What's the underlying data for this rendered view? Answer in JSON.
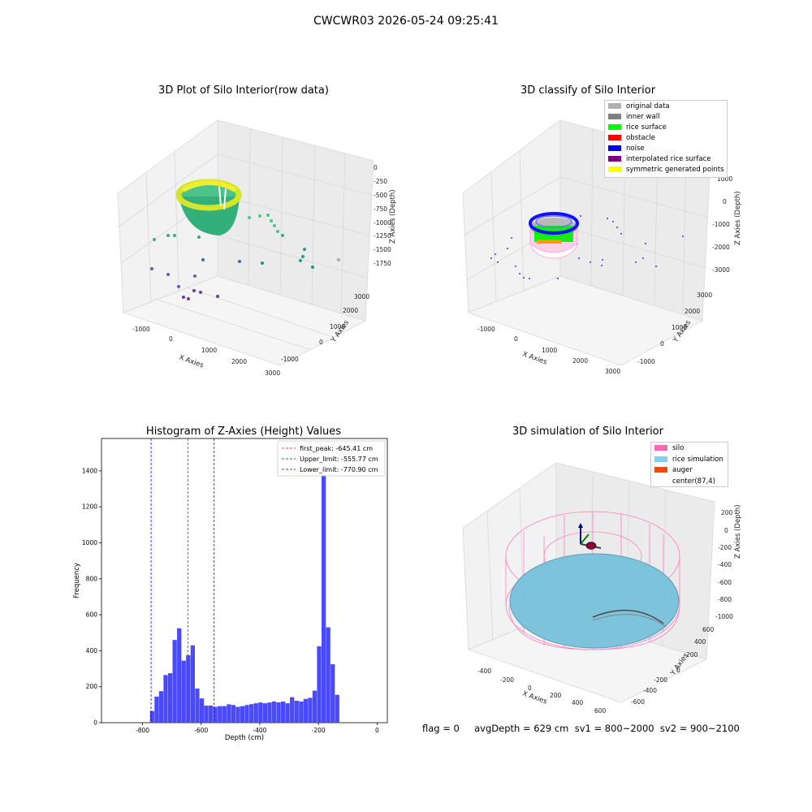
{
  "suptitle": "CWCWR03 2026-05-24 09:25:41",
  "footer": "flag = 0     avgDepth = 629 cm  sv1 = 800~2000  sv2 = 900~2100",
  "panels": {
    "raw": {
      "title": "3D Plot of Silo Interior(row data)",
      "xlabel": "X Axies",
      "ylabel": "Y Axies",
      "zlabel": "Z Axies (Depth)",
      "xticks": [
        "-1000",
        "0",
        "1000",
        "2000",
        "3000"
      ],
      "yticks": [
        "-1000",
        "0",
        "1000",
        "2000",
        "3000"
      ],
      "zticks": [
        "0",
        "-250",
        "-500",
        "-750",
        "-1000",
        "-1250",
        "-1500",
        "-1750"
      ]
    },
    "classify": {
      "title": "3D classify of Silo Interior",
      "xlabel": "X Axies",
      "ylabel": "Y Axies",
      "zlabel": "Z Axies (Depth)",
      "xticks": [
        "-1000",
        "0",
        "1000",
        "2000",
        "3000"
      ],
      "yticks": [
        "-1000",
        "0",
        "1000",
        "2000",
        "3000"
      ],
      "zticks": [
        "1000",
        "0",
        "-1000",
        "-2000",
        "-3000"
      ],
      "legend": [
        {
          "label": "original data",
          "color": "#b0b0b0"
        },
        {
          "label": "inner wall",
          "color": "#808080"
        },
        {
          "label": "rice surface",
          "color": "#00ff00"
        },
        {
          "label": "obstacle",
          "color": "#ff0000"
        },
        {
          "label": "noise",
          "color": "#0000ff"
        },
        {
          "label": "interpolated rice surface",
          "color": "#800080"
        },
        {
          "label": "symmetric generated points",
          "color": "#ffff00"
        }
      ]
    },
    "simulation": {
      "title": "3D simulation of Silo Interior",
      "xlabel": "X Axies",
      "ylabel": "Y Axies",
      "zlabel": "Z Axies (Depth)",
      "xticks": [
        "-400",
        "-200",
        "0",
        "200",
        "400",
        "600"
      ],
      "yticks": [
        "-600",
        "-400",
        "-200",
        "0",
        "200",
        "400",
        "600"
      ],
      "zticks": [
        "200",
        "0",
        "-200",
        "-400",
        "-600",
        "-800",
        "-1000"
      ],
      "legend": [
        {
          "label": "silo",
          "color": "#ff69b4"
        },
        {
          "label": "rice simulation",
          "color": "#87ceeb"
        },
        {
          "label": "auger",
          "color": "#ff4500"
        },
        {
          "label": "center(87,4)",
          "color": "#ffffff"
        }
      ]
    }
  },
  "chart_data": {
    "type": "bar",
    "title": "Histogram of Z-Axies (Height) Values",
    "xlabel": "Depth (cm)",
    "ylabel": "Frequency",
    "xlim": [
      -940,
      35
    ],
    "ylim": [
      0,
      1580
    ],
    "xticks": [
      -800,
      -600,
      -400,
      -200,
      0
    ],
    "yticks": [
      0,
      200,
      400,
      600,
      800,
      1000,
      1200,
      1400
    ],
    "bin_start": -790,
    "bin_width": 15.4,
    "values": [
      0,
      65,
      145,
      175,
      265,
      275,
      460,
      525,
      345,
      375,
      430,
      190,
      135,
      95,
      95,
      88,
      92,
      92,
      102,
      98,
      88,
      92,
      98,
      103,
      108,
      112,
      108,
      112,
      118,
      113,
      118,
      108,
      142,
      122,
      118,
      132,
      138,
      178,
      425,
      1535,
      530,
      325,
      155
    ],
    "bar_color": "#4a4afb",
    "lines": [
      {
        "label": "first_peak: -645.41 cm",
        "x": -645.41,
        "color": "#ff0000"
      },
      {
        "label": "Upper_limit: -555.77 cm",
        "x": -555.77,
        "color": "#0000ff"
      },
      {
        "label": "Lower_limit: -770.90 cm",
        "x": -770.9,
        "color": "#0000ff"
      }
    ]
  }
}
